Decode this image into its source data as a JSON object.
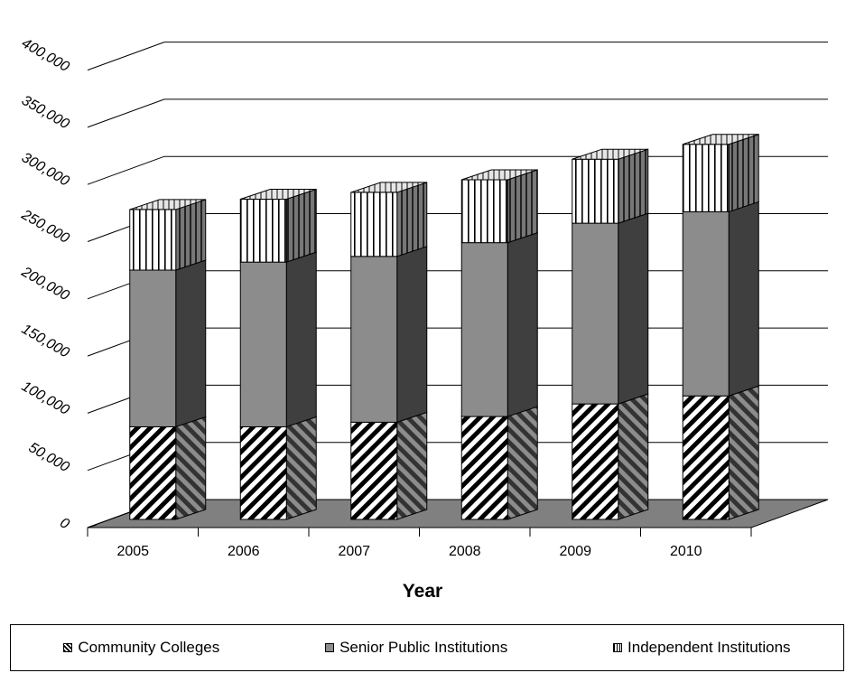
{
  "chart_data": {
    "type": "bar",
    "stacked": true,
    "three_d": true,
    "categories": [
      "2005",
      "2006",
      "2007",
      "2008",
      "2009",
      "2010"
    ],
    "series": [
      {
        "name": "Community Colleges",
        "values": [
          81000,
          81000,
          85000,
          90000,
          101000,
          108000
        ],
        "pattern": "diagonal-hatch"
      },
      {
        "name": "Senior Public Institutions",
        "values": [
          137000,
          144000,
          145000,
          152000,
          158000,
          161000
        ],
        "color": "#8c8c8c"
      },
      {
        "name": "Independent Institutions",
        "values": [
          53000,
          55000,
          56000,
          55000,
          56000,
          59000
        ],
        "pattern": "vertical-lines"
      }
    ],
    "yticks": [
      "0",
      "50,000",
      "100,000",
      "150,000",
      "200,000",
      "250,000",
      "300,000",
      "350,000",
      "400,000"
    ],
    "ylim": [
      0,
      400000
    ],
    "xlabel": "Year",
    "ylabel": "",
    "title": "",
    "grid": true,
    "legend_position": "bottom"
  }
}
